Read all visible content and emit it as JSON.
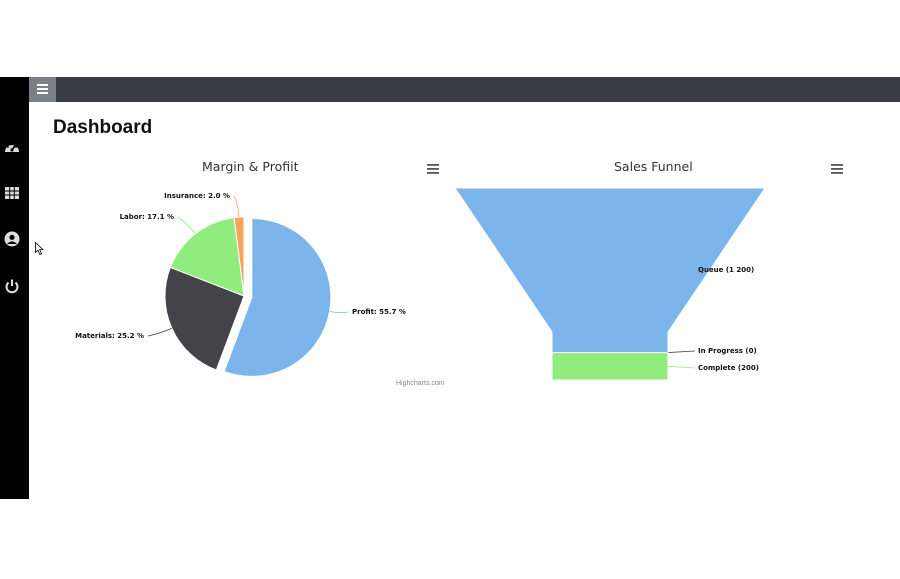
{
  "page": {
    "title": "Dashboard",
    "credits": "Highcharts.com"
  },
  "sidebar": {
    "items": [
      {
        "icon": "dashboard-gauge-icon"
      },
      {
        "icon": "table-grid-icon"
      },
      {
        "icon": "user-profile-icon"
      },
      {
        "icon": "power-icon"
      }
    ]
  },
  "colors": {
    "blue": "#7cb5ec",
    "dark": "#434348",
    "green": "#90ed7d",
    "orange": "#f7a35c"
  },
  "chart_data": [
    {
      "type": "pie",
      "title": "Margin & Profiit",
      "slices": [
        {
          "name": "Profit",
          "value": 55.7,
          "label": "Profit: 55.7 %",
          "color": "#7cb5ec",
          "sliced": true
        },
        {
          "name": "Materials",
          "value": 25.2,
          "label": "Materials: 25.2 %",
          "color": "#434348"
        },
        {
          "name": "Labor",
          "value": 17.1,
          "label": "Labor: 17.1 %",
          "color": "#90ed7d"
        },
        {
          "name": "Insurance",
          "value": 2.0,
          "label": "Insurance: 2.0 %",
          "color": "#f7a35c"
        }
      ]
    },
    {
      "type": "funnel",
      "title": "Sales Funnel",
      "stages": [
        {
          "name": "Queue",
          "value": 1200,
          "label": "Queue (1 200)",
          "color": "#7cb5ec"
        },
        {
          "name": "In Progress",
          "value": 0,
          "label": "In Progress (0)",
          "color": "#434348"
        },
        {
          "name": "Complete",
          "value": 200,
          "label": "Complete (200)",
          "color": "#90ed7d"
        }
      ]
    }
  ]
}
